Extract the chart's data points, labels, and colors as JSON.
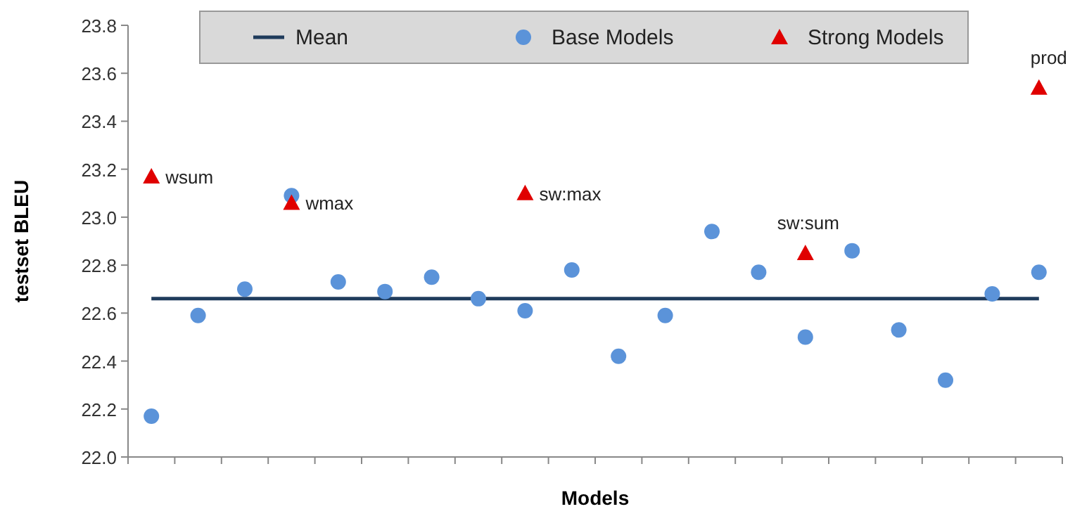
{
  "chart_data": {
    "type": "scatter",
    "xlabel": "Models",
    "ylabel": "testset BLEU",
    "categories": [
      null,
      null,
      null,
      null,
      null,
      null,
      null,
      null,
      null,
      null,
      null,
      null,
      null,
      null,
      null,
      null,
      null,
      null,
      null,
      null
    ],
    "series": [
      {
        "name": "Mean",
        "type": "line",
        "color": "#1f3b5c",
        "marker": "none",
        "values": [
          22.66,
          22.66,
          22.66,
          22.66,
          22.66,
          22.66,
          22.66,
          22.66,
          22.66,
          22.66,
          22.66,
          22.66,
          22.66,
          22.66,
          22.66,
          22.66,
          22.66,
          22.66,
          22.66,
          22.66
        ]
      },
      {
        "name": "Base Models",
        "color": "#5b93d9",
        "marker": "circle",
        "values": [
          22.17,
          22.59,
          22.7,
          23.09,
          22.73,
          22.69,
          22.75,
          22.66,
          22.61,
          22.78,
          22.42,
          22.59,
          22.94,
          22.77,
          22.5,
          22.86,
          22.53,
          22.32,
          22.68,
          22.77
        ]
      },
      {
        "name": "Strong Models",
        "color": "#e00000",
        "marker": "triangle",
        "values": [
          23.17,
          null,
          null,
          23.06,
          null,
          null,
          null,
          null,
          23.1,
          null,
          null,
          null,
          null,
          null,
          22.85,
          null,
          null,
          null,
          null,
          23.54
        ],
        "value_labels": [
          "wsum",
          null,
          null,
          "wmax",
          null,
          null,
          null,
          null,
          "sw:max",
          null,
          null,
          null,
          null,
          null,
          "sw:sum",
          null,
          null,
          null,
          null,
          "prod"
        ]
      }
    ],
    "ylim": [
      22.0,
      23.8
    ],
    "yticks": [
      {
        "value": 22.0,
        "label": "22.0"
      },
      {
        "value": 22.2,
        "label": "22.2"
      },
      {
        "value": 22.4,
        "label": "22.4"
      },
      {
        "value": 22.6,
        "label": "22.6"
      },
      {
        "value": 22.8,
        "label": "22.8"
      },
      {
        "value": 23.0,
        "label": "23.0"
      },
      {
        "value": 23.2,
        "label": "23.2"
      },
      {
        "value": 23.4,
        "label": "23.4"
      },
      {
        "value": 23.6,
        "label": "23.6"
      },
      {
        "value": 23.8,
        "label": "23.8"
      }
    ],
    "grid": false,
    "legend": "top"
  }
}
